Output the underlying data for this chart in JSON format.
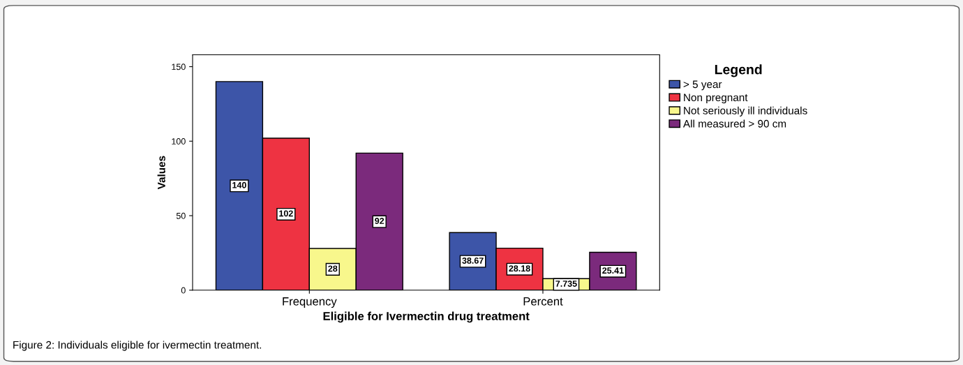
{
  "chart_data": {
    "type": "bar",
    "xlabel": "Eligible for Ivermectin drug treatment",
    "ylabel": "Values",
    "legend_title": "Legend",
    "categories": [
      "Frequency",
      "Percent"
    ],
    "series": [
      {
        "name": "> 5 year",
        "color": "#3d55a8",
        "values": [
          140,
          38.67
        ]
      },
      {
        "name": "Non pregnant",
        "color": "#ee3342",
        "values": [
          102,
          28.18
        ]
      },
      {
        "name": "Not seriously ill individuals",
        "color": "#f8f78c",
        "values": [
          28,
          7.735
        ]
      },
      {
        "name": "All measured > 90 cm",
        "color": "#7b2a7c",
        "values": [
          92,
          25.41
        ]
      }
    ],
    "ylim": [
      0,
      158
    ],
    "yticks": [
      0,
      50,
      100,
      150
    ],
    "grid": false,
    "legend": "right",
    "data_labels": true,
    "annotations": [
      "Figure 2: Individuals eligible for ivermectin treatment."
    ]
  }
}
